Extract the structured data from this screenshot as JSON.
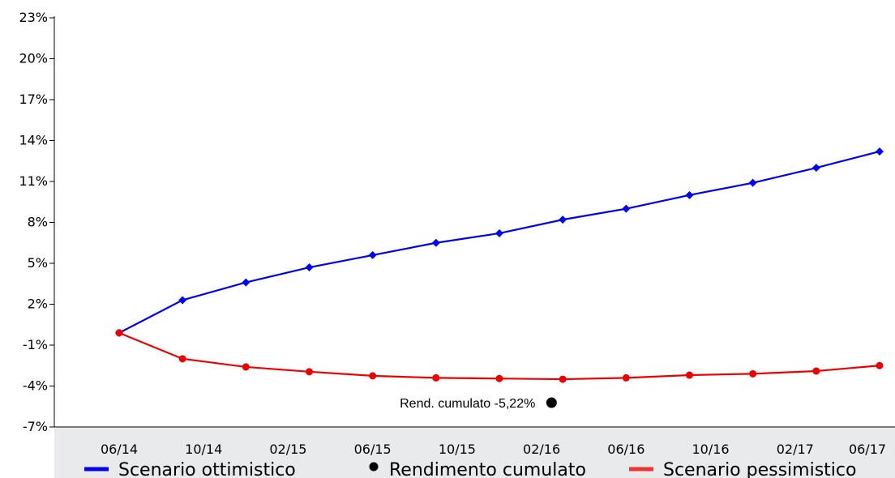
{
  "chart_data": {
    "type": "line",
    "ylim": [
      -7,
      23
    ],
    "yticks": [
      "23%",
      "20%",
      "17%",
      "14%",
      "11%",
      "8%",
      "5%",
      "2%",
      "-1%",
      "-4%",
      "-7%"
    ],
    "ytick_values": [
      23,
      20,
      17,
      14,
      11,
      8,
      5,
      2,
      -1,
      -4,
      -7
    ],
    "x": [
      "06/14",
      "08/14",
      "10/14",
      "12/14",
      "02/15",
      "04/15",
      "06/15",
      "08/15",
      "10/15",
      "12/15",
      "02/16",
      "04/16",
      "06/16",
      "08/16",
      "10/16",
      "12/16",
      "02/17",
      "04/17",
      "06/17"
    ],
    "xtick_labels": [
      "06/14",
      "10/14",
      "02/15",
      "06/15",
      "10/15",
      "02/16",
      "06/16",
      "10/16",
      "02/17",
      "06/17"
    ],
    "series": [
      {
        "name": "Scenario  ottimistico",
        "color": "#0000ee",
        "marker": "diamond",
        "x": [
          "06/14",
          "10/14",
          "12/14",
          "02/15",
          "04/15",
          "06/15",
          "08/15",
          "10/15",
          "12/15",
          "02/16",
          "04/16",
          "06/16",
          "08/16",
          "10/16",
          "12/16"
        ],
        "values": [
          -0.1,
          2.3,
          3.6,
          4.7,
          5.6,
          6.5,
          7.2,
          8.2,
          9.0,
          10.0,
          10.9,
          12.0,
          13.2,
          null,
          null
        ]
      },
      {
        "name": "Scenario pessimistico",
        "color": "#ee0000",
        "marker": "circle",
        "x": [
          "06/14",
          "10/14",
          "12/14",
          "02/15",
          "04/15",
          "06/15",
          "08/15",
          "10/15",
          "12/15",
          "02/16",
          "04/16",
          "06/16",
          "08/16",
          "10/16",
          "12/16"
        ],
        "values": [
          -0.1,
          -2.0,
          -2.6,
          -2.95,
          -3.25,
          -3.4,
          -3.45,
          -3.5,
          -3.4,
          -3.2,
          -3.1,
          -2.9,
          -2.5,
          null,
          null
        ]
      }
    ],
    "point": {
      "name": "Rendimento cumulato",
      "x": "06/16",
      "value": -5.22,
      "color": "#000000",
      "label": "Rend. cumulato -5,22%"
    },
    "legend": {
      "placement": "bottom",
      "items": [
        {
          "label": "Scenario  ottimistico",
          "color": "#0000ee",
          "symbol": "line"
        },
        {
          "label": "Rendimento cumulato",
          "color": "#000000",
          "symbol": "dot"
        },
        {
          "label": "Scenario pessimistico",
          "color": "#ee3333",
          "symbol": "line"
        }
      ]
    },
    "grid": false,
    "axis_band_color": "#e8eaec"
  }
}
